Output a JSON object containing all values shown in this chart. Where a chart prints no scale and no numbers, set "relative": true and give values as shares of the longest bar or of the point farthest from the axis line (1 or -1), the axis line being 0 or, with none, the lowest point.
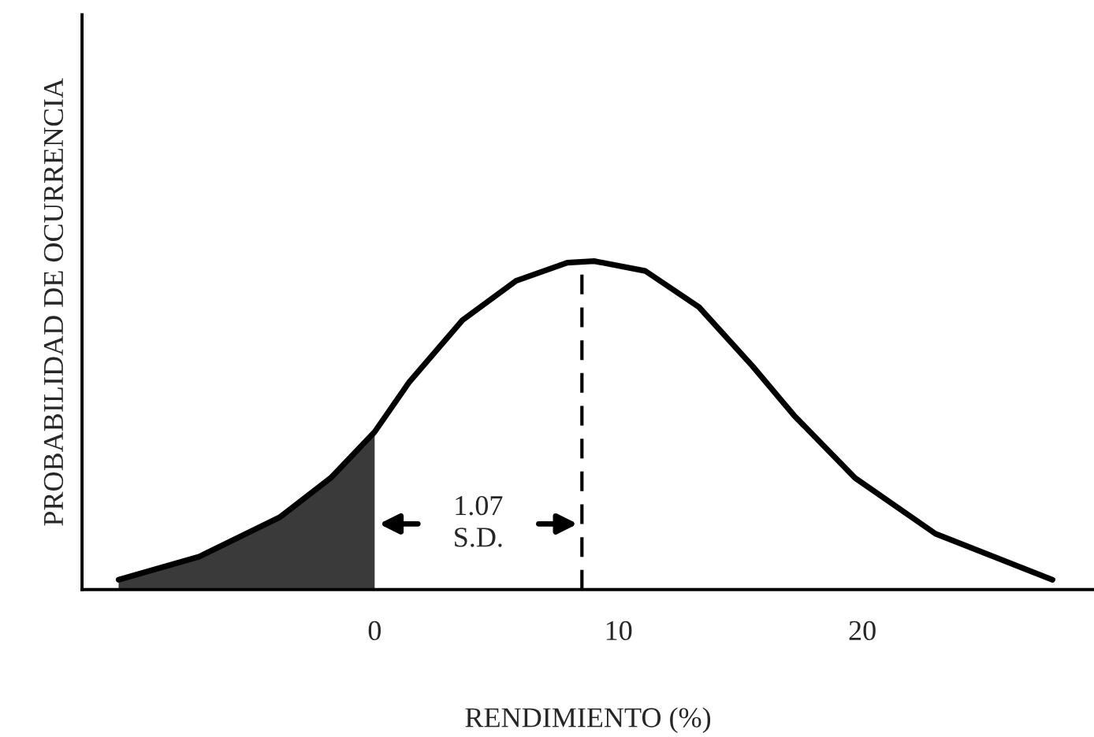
{
  "chart_data": {
    "type": "line",
    "relative": true,
    "xlabel": "RENDIMIENTO (%)",
    "ylabel": "PROBABILIDAD DE OCURRENCIA",
    "xlim": [
      -12,
      29.5
    ],
    "xticks": [
      0,
      10,
      20
    ],
    "grid": false,
    "legend": false,
    "marker": "none",
    "series": [
      {
        "type": "area",
        "color": "#3a3a3a",
        "x": [
          -10.5,
          -7.2,
          -3.9,
          -1.8,
          0
        ],
        "values": [
          0.03,
          0.1,
          0.22,
          0.34,
          0.48
        ]
      },
      {
        "color": "#000000",
        "line_style": "solid",
        "x": [
          -10.5,
          -7.2,
          -3.9,
          -1.8,
          0,
          1.4,
          3.6,
          5.8,
          7.9,
          9.0,
          11.1,
          13.3,
          15.5,
          17.2,
          19.7,
          23.0,
          27.8
        ],
        "values": [
          0.03,
          0.1,
          0.22,
          0.34,
          0.48,
          0.63,
          0.82,
          0.94,
          0.995,
          1.0,
          0.97,
          0.86,
          0.68,
          0.53,
          0.34,
          0.17,
          0.03
        ]
      }
    ],
    "ref_lines": [
      {
        "axis": "x",
        "value": 8.5,
        "color": "#000000",
        "line_style": "dashed"
      }
    ],
    "annotations": [
      "1.07\nS.D."
    ]
  }
}
